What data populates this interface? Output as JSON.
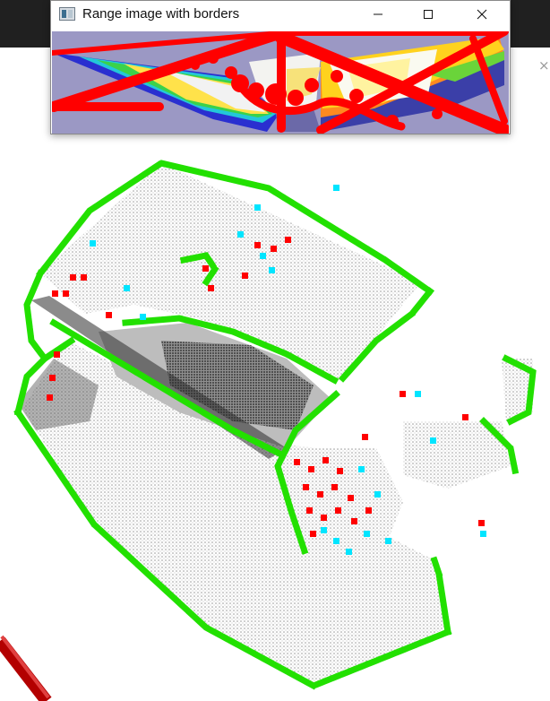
{
  "window": {
    "title": "Range image with borders",
    "icons": {
      "app": "window-app-icon",
      "minimize": "minimize-icon",
      "maximize": "maximize-icon",
      "close": "close-icon"
    }
  },
  "background": {
    "close_glyph": "×"
  },
  "colors": {
    "range_background": "#9b98c4",
    "border_points": "#ff0000",
    "veil_points": "#00e5ff",
    "shadow_points": "#22e000",
    "surface_points": "#c8c8c8"
  }
}
